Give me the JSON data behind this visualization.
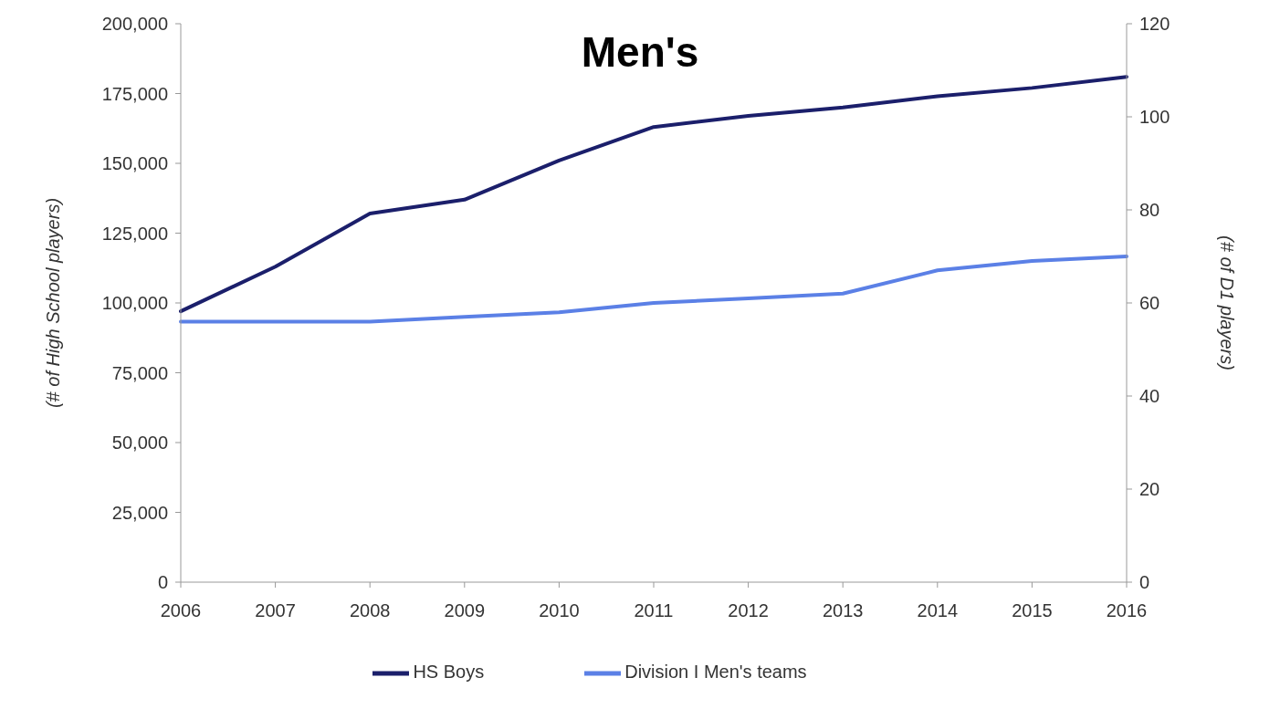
{
  "chart_data": {
    "type": "line",
    "title": "Men's",
    "ylabel": "(# of High School players)",
    "y2label": "(# of D1 players)",
    "categories": [
      "2006",
      "2007",
      "2008",
      "2009",
      "2010",
      "2011",
      "2012",
      "2013",
      "2014",
      "2015",
      "2016"
    ],
    "series": [
      {
        "name": "HS Boys",
        "color": "#1b1f6b",
        "values": [
          97000,
          113000,
          132000,
          137000,
          151000,
          163000,
          167000,
          170000,
          174000,
          177000,
          181000
        ]
      },
      {
        "name": "Division I Men's teams",
        "color": "#5b80e6",
        "axis": "y2",
        "values": [
          56,
          56,
          56,
          57,
          58,
          60,
          61,
          62,
          67,
          69,
          70
        ]
      }
    ],
    "ylim": [
      0,
      200000
    ],
    "yticks": [
      0,
      {
        "value": 25000,
        "label": "25,000"
      },
      {
        "value": 50000,
        "label": "50,000"
      },
      {
        "value": 75000,
        "label": "75,000"
      },
      {
        "value": 100000,
        "label": "100,000"
      },
      {
        "value": 125000,
        "label": "125,000"
      },
      {
        "value": 150000,
        "label": "150,000"
      },
      {
        "value": 175000,
        "label": "175,000"
      },
      {
        "value": 200000,
        "label": "200,000"
      }
    ],
    "y2lim": [
      0,
      120
    ],
    "y2ticks": [
      0,
      20,
      40,
      60,
      80,
      100,
      120
    ],
    "grid": false,
    "legend": "bottom",
    "marker": "none",
    "line_style": "solid"
  }
}
